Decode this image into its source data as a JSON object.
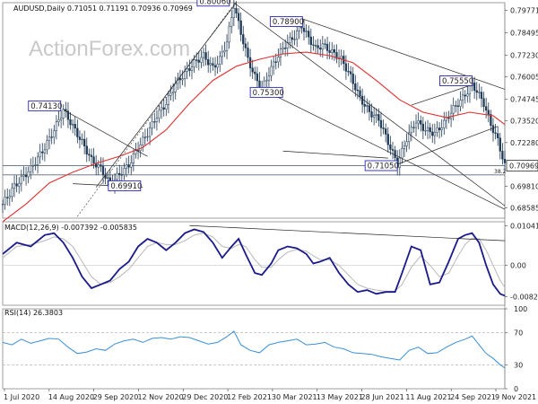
{
  "watermark": "ActionForex.com",
  "chart_data": {
    "type": "candlestick",
    "symbol_header": "AUDUSD,Daily  0.71051 0.71191 0.70936 0.70969",
    "last_price": "0.70969",
    "x_ticks": [
      "1 Jul 2020",
      "14 Aug 2020",
      "29 Sep 2020",
      "12 Nov 2020",
      "29 Dec 2020",
      "12 Feb 2021",
      "30 Mar 2021",
      "13 May 2021",
      "28 Jun 2021",
      "11 Aug 2021",
      "24 Sep 2021",
      "9 Nov 2021"
    ],
    "price_ticks": [
      "0.79771",
      "0.78495",
      "0.77230",
      "0.76005",
      "0.74745",
      "0.73520",
      "0.72280",
      "0.70969",
      "0.69810",
      "0.68585"
    ],
    "price_range": [
      0.68,
      0.802
    ],
    "price_path": [
      [
        0,
        0.688
      ],
      [
        5,
        0.698
      ],
      [
        12,
        0.708
      ],
      [
        18,
        0.72
      ],
      [
        22,
        0.73
      ],
      [
        26,
        0.7413
      ],
      [
        30,
        0.732
      ],
      [
        34,
        0.723
      ],
      [
        38,
        0.713
      ],
      [
        42,
        0.708
      ],
      [
        46,
        0.6991
      ],
      [
        50,
        0.705
      ],
      [
        54,
        0.71
      ],
      [
        58,
        0.72
      ],
      [
        62,
        0.728
      ],
      [
        66,
        0.738
      ],
      [
        70,
        0.745
      ],
      [
        74,
        0.756
      ],
      [
        78,
        0.762
      ],
      [
        82,
        0.768
      ],
      [
        86,
        0.772
      ],
      [
        90,
        0.765
      ],
      [
        93,
        0.77
      ],
      [
        96,
        0.78
      ],
      [
        99,
        0.8006
      ],
      [
        102,
        0.785
      ],
      [
        105,
        0.77
      ],
      [
        108,
        0.76
      ],
      [
        111,
        0.753
      ],
      [
        114,
        0.762
      ],
      [
        117,
        0.77
      ],
      [
        121,
        0.778
      ],
      [
        125,
        0.783
      ],
      [
        128,
        0.789
      ],
      [
        131,
        0.782
      ],
      [
        134,
        0.776
      ],
      [
        137,
        0.778
      ],
      [
        141,
        0.774
      ],
      [
        145,
        0.77
      ],
      [
        149,
        0.76
      ],
      [
        153,
        0.748
      ],
      [
        157,
        0.74
      ],
      [
        161,
        0.736
      ],
      [
        165,
        0.723
      ],
      [
        169,
        0.7105
      ],
      [
        173,
        0.725
      ],
      [
        177,
        0.735
      ],
      [
        181,
        0.73
      ],
      [
        185,
        0.728
      ],
      [
        189,
        0.734
      ],
      [
        193,
        0.742
      ],
      [
        197,
        0.748
      ],
      [
        201,
        0.7555
      ],
      [
        203,
        0.752
      ],
      [
        206,
        0.745
      ],
      [
        209,
        0.733
      ],
      [
        212,
        0.724
      ],
      [
        215,
        0.7097
      ]
    ],
    "ma_path": [
      [
        0,
        0.678
      ],
      [
        10,
        0.688
      ],
      [
        20,
        0.7
      ],
      [
        30,
        0.706
      ],
      [
        40,
        0.711
      ],
      [
        50,
        0.715
      ],
      [
        60,
        0.72
      ],
      [
        70,
        0.73
      ],
      [
        80,
        0.745
      ],
      [
        90,
        0.758
      ],
      [
        100,
        0.766
      ],
      [
        110,
        0.77
      ],
      [
        120,
        0.773
      ],
      [
        130,
        0.774
      ],
      [
        140,
        0.772
      ],
      [
        150,
        0.768
      ],
      [
        160,
        0.758
      ],
      [
        170,
        0.747
      ],
      [
        180,
        0.74
      ],
      [
        190,
        0.737
      ],
      [
        200,
        0.74
      ],
      [
        210,
        0.738
      ],
      [
        215,
        0.733
      ]
    ],
    "annotations": [
      {
        "label": "0.74130",
        "i": 26,
        "v": 0.7413,
        "dx": -39,
        "dy": -10
      },
      {
        "label": "0.69910",
        "i": 46,
        "v": 0.6991,
        "dx": -2,
        "dy": -4
      },
      {
        "label": "0.80060",
        "i": 99,
        "v": 0.8006,
        "dx": -41,
        "dy": -10
      },
      {
        "label": "0.78900",
        "i": 128,
        "v": 0.789,
        "dx": -35,
        "dy": -10
      },
      {
        "label": "0.75300",
        "i": 111,
        "v": 0.753,
        "dx": -13,
        "dy": -2
      },
      {
        "label": "0.71050",
        "i": 169,
        "v": 0.7105,
        "dx": -36,
        "dy": -4
      },
      {
        "label": "0.75550",
        "i": 201,
        "v": 0.7555,
        "dx": -36,
        "dy": -10
      }
    ],
    "horizontal_levels": [
      0.7097,
      0.7045
    ],
    "fib_label": "38.2",
    "macd": {
      "header": "MACD(12,26,9) -0.007392 -0.005835",
      "ticks": [
        "0.010416",
        "0.00",
        "-0.00824"
      ],
      "range": [
        -0.0105,
        0.0115
      ],
      "main": [
        [
          0,
          0.003
        ],
        [
          6,
          0.006
        ],
        [
          12,
          0.005
        ],
        [
          18,
          0.008
        ],
        [
          22,
          0.0085
        ],
        [
          26,
          0.006
        ],
        [
          30,
          0.002
        ],
        [
          34,
          -0.003
        ],
        [
          38,
          -0.006
        ],
        [
          42,
          -0.005
        ],
        [
          46,
          -0.004
        ],
        [
          50,
          -0.001
        ],
        [
          54,
          0.001
        ],
        [
          58,
          0.005
        ],
        [
          62,
          0.007
        ],
        [
          66,
          0.006
        ],
        [
          70,
          0.004
        ],
        [
          74,
          0.006
        ],
        [
          78,
          0.0085
        ],
        [
          82,
          0.0095
        ],
        [
          86,
          0.0088
        ],
        [
          90,
          0.006
        ],
        [
          94,
          0.002
        ],
        [
          98,
          0.005
        ],
        [
          101,
          0.007
        ],
        [
          104,
          0.003
        ],
        [
          108,
          -0.002
        ],
        [
          111,
          -0.0025
        ],
        [
          115,
          0.0005
        ],
        [
          118,
          0.004
        ],
        [
          122,
          0.005
        ],
        [
          126,
          0.0045
        ],
        [
          130,
          0.003
        ],
        [
          133,
          0.0005
        ],
        [
          136,
          0.001
        ],
        [
          140,
          0.002
        ],
        [
          144,
          -0.002
        ],
        [
          148,
          -0.005
        ],
        [
          152,
          -0.007
        ],
        [
          156,
          -0.0065
        ],
        [
          160,
          -0.0075
        ],
        [
          164,
          -0.007
        ],
        [
          168,
          -0.007
        ],
        [
          171,
          -0.002
        ],
        [
          175,
          0.005
        ],
        [
          179,
          0.004
        ],
        [
          183,
          -0.005
        ],
        [
          187,
          -0.0045
        ],
        [
          191,
          0.001
        ],
        [
          195,
          0.007
        ],
        [
          198,
          0.008
        ],
        [
          201,
          0.0085
        ],
        [
          204,
          0.006
        ],
        [
          207,
          0.0
        ],
        [
          210,
          -0.005
        ],
        [
          213,
          -0.0075
        ],
        [
          215,
          -0.008
        ]
      ],
      "signal": [
        [
          0,
          0.002
        ],
        [
          6,
          0.005
        ],
        [
          12,
          0.0055
        ],
        [
          18,
          0.0065
        ],
        [
          22,
          0.0075
        ],
        [
          26,
          0.007
        ],
        [
          30,
          0.005
        ],
        [
          34,
          0.001
        ],
        [
          38,
          -0.003
        ],
        [
          42,
          -0.005
        ],
        [
          46,
          -0.0045
        ],
        [
          50,
          -0.003
        ],
        [
          54,
          -0.001
        ],
        [
          58,
          0.002
        ],
        [
          62,
          0.005
        ],
        [
          66,
          0.006
        ],
        [
          70,
          0.0055
        ],
        [
          74,
          0.0055
        ],
        [
          78,
          0.0065
        ],
        [
          82,
          0.008
        ],
        [
          86,
          0.0085
        ],
        [
          90,
          0.0075
        ],
        [
          94,
          0.005
        ],
        [
          98,
          0.0045
        ],
        [
          101,
          0.0055
        ],
        [
          104,
          0.005
        ],
        [
          108,
          0.0015
        ],
        [
          111,
          -0.0005
        ],
        [
          115,
          -0.0005
        ],
        [
          118,
          0.0015
        ],
        [
          122,
          0.0035
        ],
        [
          126,
          0.0042
        ],
        [
          130,
          0.0038
        ],
        [
          133,
          0.0025
        ],
        [
          136,
          0.0015
        ],
        [
          140,
          0.0015
        ],
        [
          144,
          0.0
        ],
        [
          148,
          -0.0025
        ],
        [
          152,
          -0.005
        ],
        [
          156,
          -0.006
        ],
        [
          160,
          -0.0065
        ],
        [
          164,
          -0.0068
        ],
        [
          168,
          -0.0068
        ],
        [
          171,
          -0.005
        ],
        [
          175,
          -0.0005
        ],
        [
          179,
          0.0025
        ],
        [
          183,
          0.0
        ],
        [
          187,
          -0.003
        ],
        [
          191,
          -0.002
        ],
        [
          195,
          0.0025
        ],
        [
          198,
          0.0055
        ],
        [
          201,
          0.0072
        ],
        [
          204,
          0.007
        ],
        [
          207,
          0.004
        ],
        [
          210,
          0.0
        ],
        [
          213,
          -0.004
        ],
        [
          215,
          -0.0058
        ]
      ]
    },
    "rsi": {
      "header": "RSI(14) 26.3803",
      "ticks": [
        "100",
        "70",
        "30",
        "0"
      ],
      "range": [
        0,
        100
      ],
      "values": [
        [
          0,
          58
        ],
        [
          4,
          55
        ],
        [
          8,
          62
        ],
        [
          12,
          57
        ],
        [
          16,
          60
        ],
        [
          20,
          63
        ],
        [
          24,
          62
        ],
        [
          28,
          52
        ],
        [
          32,
          44
        ],
        [
          36,
          46
        ],
        [
          40,
          50
        ],
        [
          44,
          48
        ],
        [
          48,
          56
        ],
        [
          52,
          60
        ],
        [
          56,
          62
        ],
        [
          60,
          58
        ],
        [
          64,
          63
        ],
        [
          68,
          64
        ],
        [
          72,
          62
        ],
        [
          76,
          65
        ],
        [
          80,
          64
        ],
        [
          84,
          60
        ],
        [
          88,
          56
        ],
        [
          92,
          58
        ],
        [
          96,
          65
        ],
        [
          99,
          72
        ],
        [
          102,
          55
        ],
        [
          106,
          48
        ],
        [
          110,
          45
        ],
        [
          114,
          55
        ],
        [
          118,
          58
        ],
        [
          122,
          60
        ],
        [
          126,
          62
        ],
        [
          130,
          55
        ],
        [
          134,
          56
        ],
        [
          138,
          58
        ],
        [
          142,
          52
        ],
        [
          146,
          50
        ],
        [
          150,
          45
        ],
        [
          154,
          44
        ],
        [
          158,
          43
        ],
        [
          162,
          40
        ],
        [
          166,
          38
        ],
        [
          170,
          36
        ],
        [
          174,
          48
        ],
        [
          178,
          52
        ],
        [
          182,
          44
        ],
        [
          186,
          45
        ],
        [
          190,
          52
        ],
        [
          194,
          58
        ],
        [
          198,
          62
        ],
        [
          201,
          66
        ],
        [
          204,
          55
        ],
        [
          207,
          44
        ],
        [
          210,
          38
        ],
        [
          213,
          30
        ],
        [
          215,
          26
        ]
      ]
    }
  }
}
